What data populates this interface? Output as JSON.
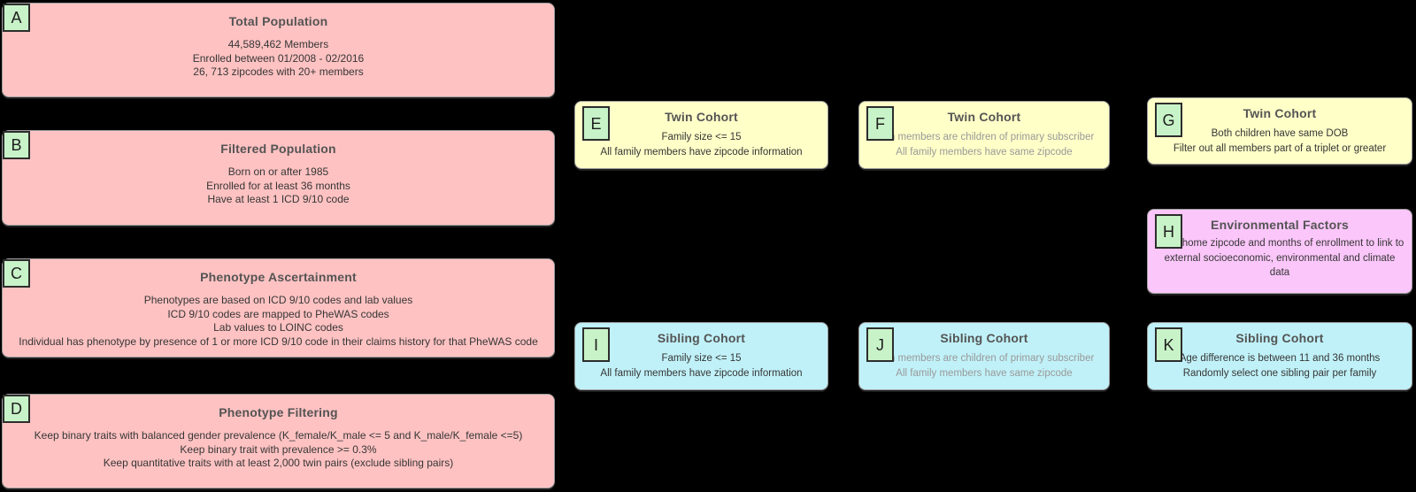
{
  "diagram": {
    "background": "#000000",
    "colors": {
      "population_fill": "#ffc2c2",
      "twin_cohort_fill": "#ffffc8",
      "sibling_cohort_fill": "#c0f1f8",
      "environmental_fill": "#fbc6fa",
      "label_square_fill": "#c8f3c8",
      "title_text": "#545454",
      "body_text": "#363636",
      "muted_text": "#999999",
      "box_border": "#9d9d9d"
    },
    "nodes": {
      "a": {
        "label": "A",
        "title": "Total Population",
        "lines": [
          "44,589,462 Members",
          "Enrolled between 01/2008 - 02/2016",
          "26, 713 zipcodes with 20+ members"
        ]
      },
      "b": {
        "label": "B",
        "title": "Filtered Population",
        "lines": [
          "Born on or after 1985",
          "Enrolled for at least 36 months",
          "Have at least 1 ICD 9/10 code"
        ]
      },
      "c": {
        "label": "C",
        "title": "Phenotype Ascertainment",
        "lines": [
          "Phenotypes are based on ICD 9/10 codes and lab values",
          "ICD 9/10 codes are mapped to PheWAS codes",
          "Lab values to LOINC codes",
          "Individual has phenotype by presence of 1 or more ICD 9/10 code in their claims history for that PheWAS code"
        ]
      },
      "d": {
        "label": "D",
        "title": "Phenotype Filtering",
        "lines": [
          "Keep binary traits with balanced gender prevalence (K_female/K_male <= 5 and K_male/K_female <=5)",
          "Keep binary trait with prevalence >= 0.3%",
          "Keep quantitative traits with at least 2,000 twin pairs (exclude sibling pairs)"
        ]
      },
      "e": {
        "label": "E",
        "title": "Twin Cohort",
        "lines": [
          "Family size <= 15",
          "All family members have zipcode information"
        ]
      },
      "f": {
        "label": "F",
        "title": "Twin Cohort",
        "lines": [
          "Both members are children of primary subscriber",
          "All family members have same zipcode"
        ]
      },
      "g": {
        "label": "G",
        "title": "Twin Cohort",
        "lines": [
          "Both children have same DOB",
          "Filter out all members part of a triplet or greater"
        ]
      },
      "h": {
        "label": "H",
        "title": "Environmental Factors",
        "lines": [
          "Used home zipcode and months of enrollment to link to external socioeconomic, environmental and climate data"
        ]
      },
      "i": {
        "label": "I",
        "title": "Sibling Cohort",
        "lines": [
          "Family size <= 15",
          "All family members have zipcode information"
        ]
      },
      "j": {
        "label": "J",
        "title": "Sibling Cohort",
        "lines": [
          "Both members are children of primary subscriber",
          "All family members have same zipcode"
        ]
      },
      "k": {
        "label": "K",
        "title": "Sibling Cohort",
        "lines": [
          "Age difference is between 11 and 36 months",
          "Randomly select one sibling pair per family"
        ]
      }
    }
  }
}
